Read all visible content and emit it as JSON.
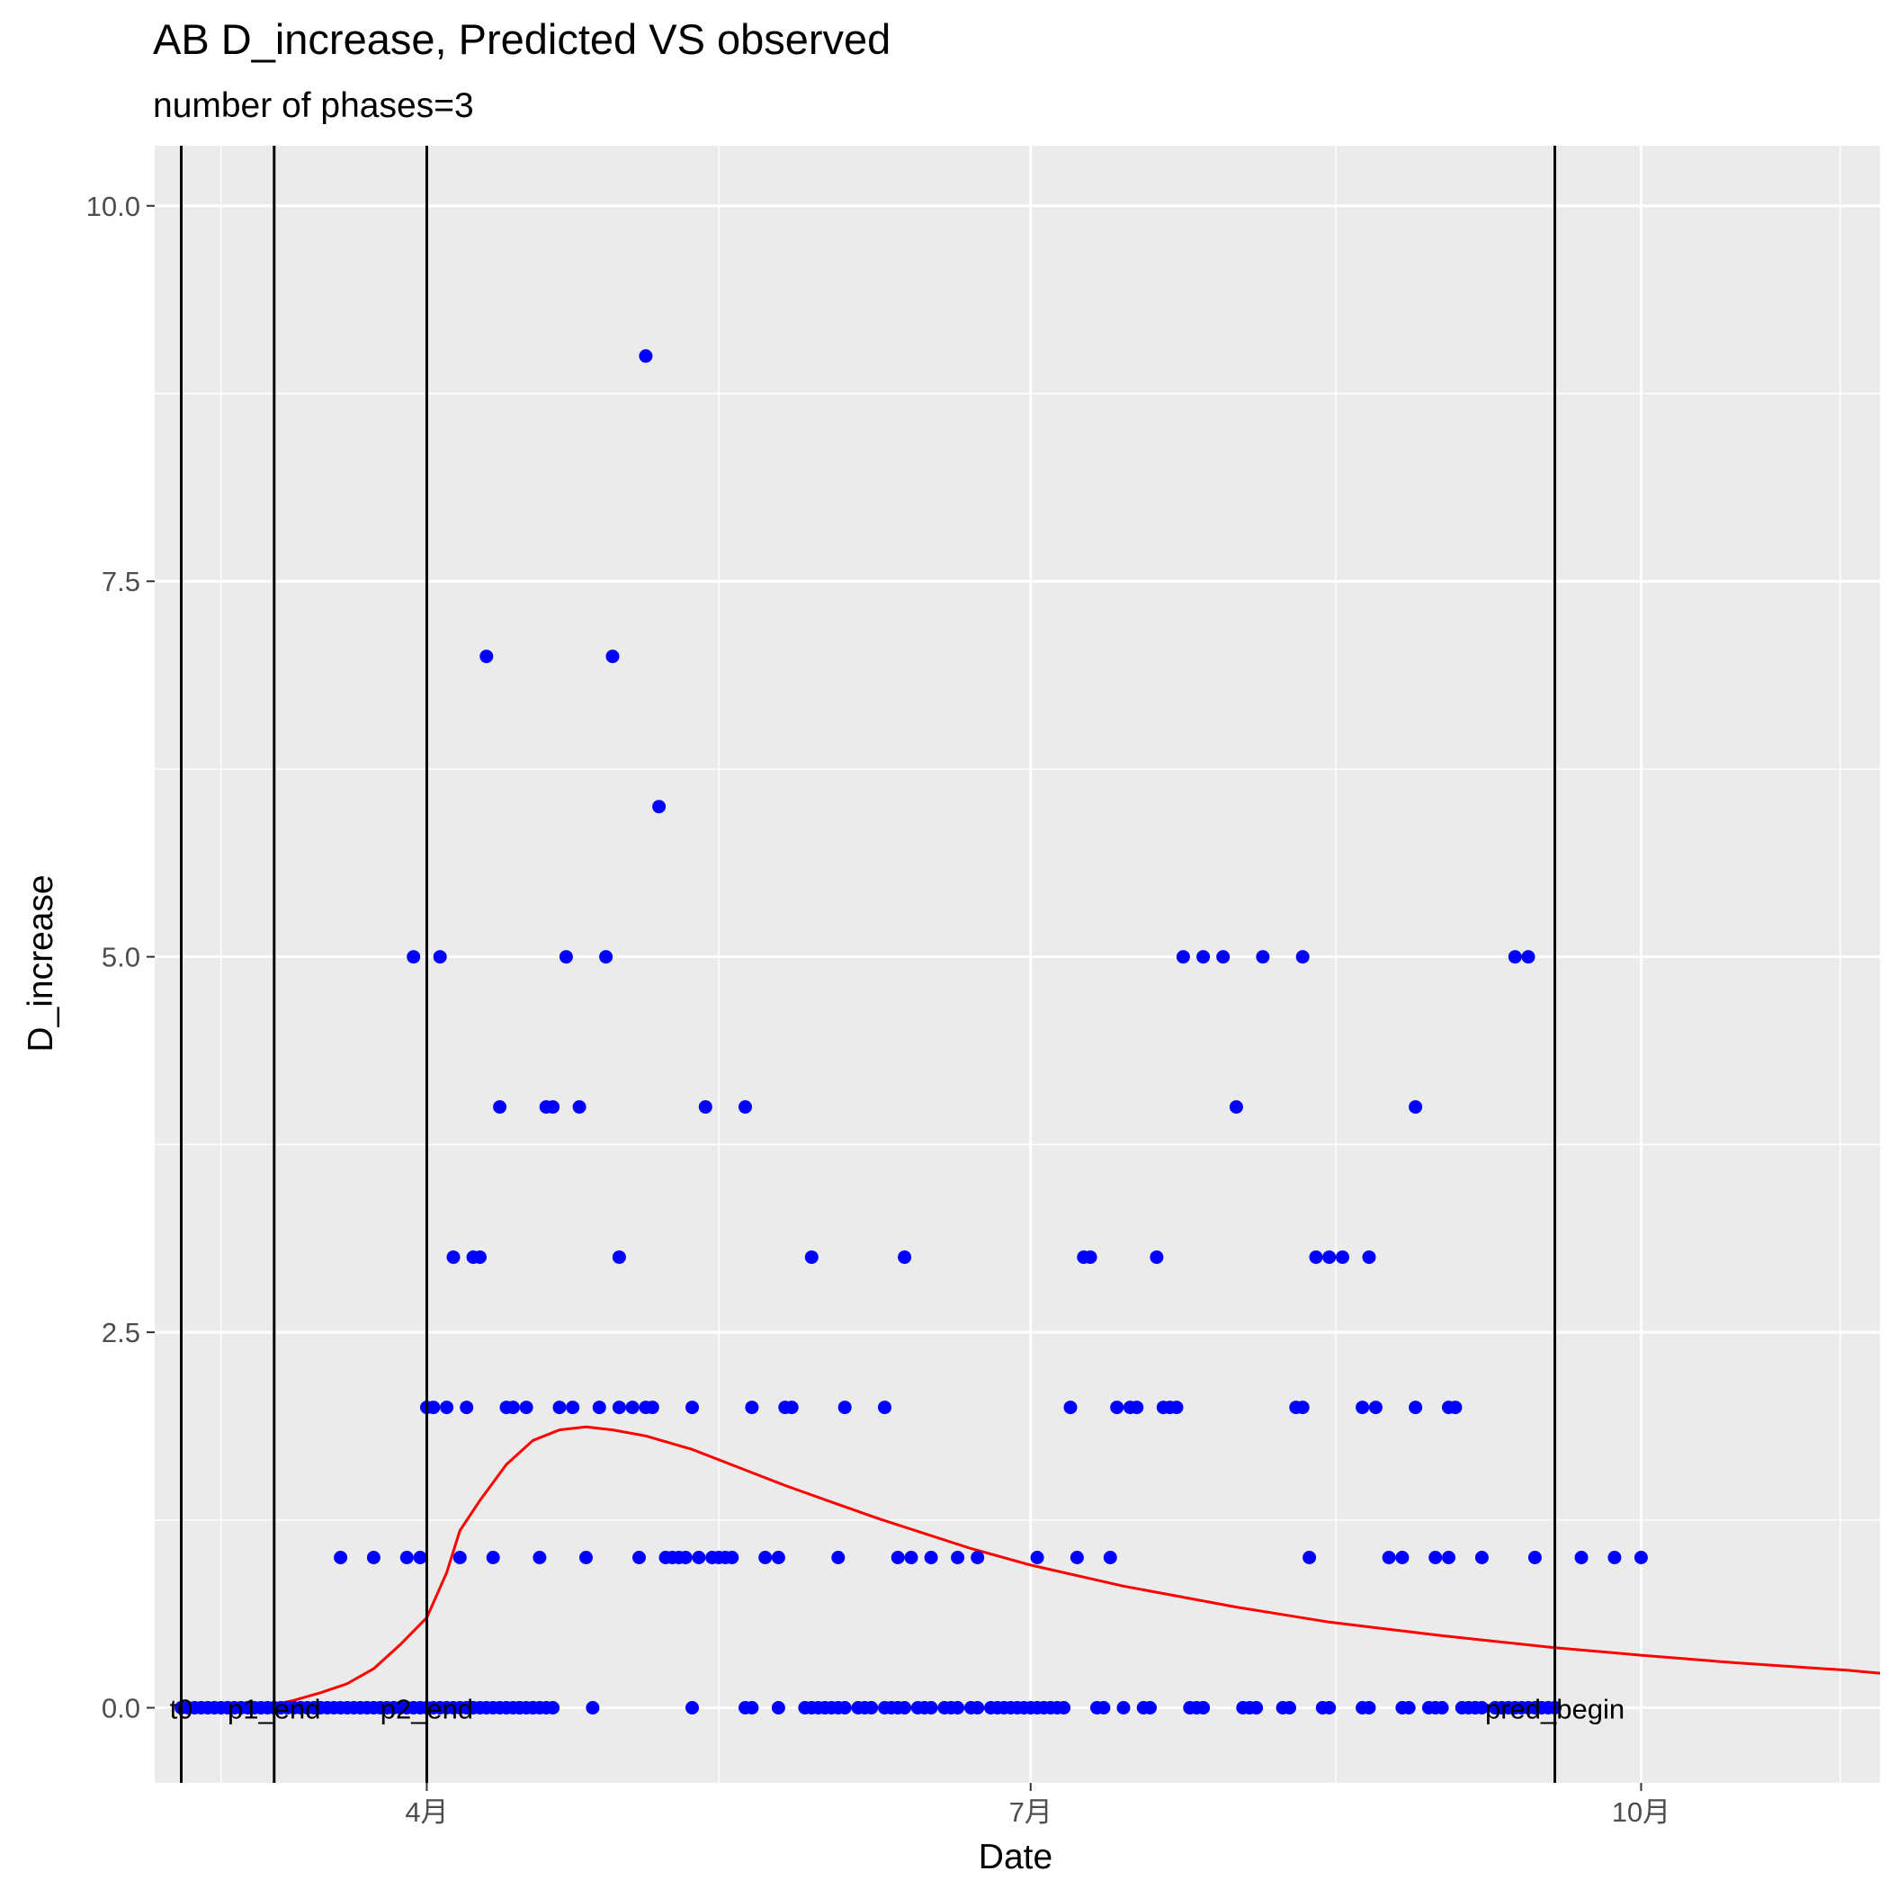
{
  "chart_data": {
    "type": "scatter",
    "title": "AB D_increase, Predicted VS observed",
    "subtitle": "number of phases=3",
    "xlabel": "Date",
    "ylabel": "D_increase",
    "xlim": [
      "2020-02-20",
      "2020-11-06"
    ],
    "ylim": [
      -0.5,
      10.4
    ],
    "grid": true,
    "y_ticks": [
      {
        "value": 0,
        "label": "0.0"
      },
      {
        "value": 2.5,
        "label": "2.5"
      },
      {
        "value": 5,
        "label": "5.0"
      },
      {
        "value": 7.5,
        "label": "7.5"
      },
      {
        "value": 10,
        "label": "10.0"
      }
    ],
    "x_ticks": [
      {
        "date": "2020-04-01",
        "label": "4月"
      },
      {
        "date": "2020-07-01",
        "label": "7月"
      },
      {
        "date": "2020-10-01",
        "label": "10月"
      }
    ],
    "x_minor": [
      "2020-03-01",
      "2020-05-15",
      "2020-08-16",
      "2020-10-31"
    ],
    "vlines": [
      {
        "date": "2020-02-24",
        "label": "t0"
      },
      {
        "date": "2020-03-09",
        "label": "p1_end"
      },
      {
        "date": "2020-04-01",
        "label": "p2_end"
      },
      {
        "date": "2020-09-18",
        "label": "pred_begin"
      }
    ],
    "series": [
      {
        "kind": "points",
        "color": "#0000ff",
        "points": [
          [
            "2020-02-24",
            0
          ],
          [
            "2020-02-25",
            0
          ],
          [
            "2020-02-26",
            0
          ],
          [
            "2020-02-27",
            0
          ],
          [
            "2020-02-28",
            0
          ],
          [
            "2020-02-29",
            0
          ],
          [
            "2020-03-01",
            0
          ],
          [
            "2020-03-02",
            0
          ],
          [
            "2020-03-03",
            0
          ],
          [
            "2020-03-04",
            0
          ],
          [
            "2020-03-05",
            0
          ],
          [
            "2020-03-06",
            0
          ],
          [
            "2020-03-07",
            0
          ],
          [
            "2020-03-08",
            0
          ],
          [
            "2020-03-09",
            0
          ],
          [
            "2020-03-10",
            0
          ],
          [
            "2020-03-11",
            0
          ],
          [
            "2020-03-12",
            0
          ],
          [
            "2020-03-13",
            0
          ],
          [
            "2020-03-14",
            0
          ],
          [
            "2020-03-15",
            0
          ],
          [
            "2020-03-16",
            0
          ],
          [
            "2020-03-17",
            0
          ],
          [
            "2020-03-18",
            0
          ],
          [
            "2020-03-19",
            0
          ],
          [
            "2020-03-20",
            0
          ],
          [
            "2020-03-21",
            0
          ],
          [
            "2020-03-22",
            0
          ],
          [
            "2020-03-23",
            0
          ],
          [
            "2020-03-24",
            0
          ],
          [
            "2020-03-25",
            0
          ],
          [
            "2020-03-26",
            0
          ],
          [
            "2020-03-27",
            0
          ],
          [
            "2020-03-28",
            0
          ],
          [
            "2020-03-29",
            0
          ],
          [
            "2020-03-30",
            0
          ],
          [
            "2020-03-31",
            0
          ],
          [
            "2020-04-01",
            0
          ],
          [
            "2020-04-02",
            0
          ],
          [
            "2020-04-03",
            0
          ],
          [
            "2020-04-04",
            0
          ],
          [
            "2020-04-05",
            0
          ],
          [
            "2020-04-06",
            0
          ],
          [
            "2020-04-07",
            0
          ],
          [
            "2020-04-08",
            0
          ],
          [
            "2020-04-09",
            0
          ],
          [
            "2020-04-10",
            0
          ],
          [
            "2020-04-11",
            0
          ],
          [
            "2020-04-12",
            0
          ],
          [
            "2020-04-13",
            0
          ],
          [
            "2020-04-14",
            0
          ],
          [
            "2020-04-15",
            0
          ],
          [
            "2020-04-16",
            0
          ],
          [
            "2020-04-17",
            0
          ],
          [
            "2020-04-18",
            0
          ],
          [
            "2020-04-19",
            0
          ],
          [
            "2020-04-20",
            0
          ],
          [
            "2020-03-19",
            1
          ],
          [
            "2020-03-24",
            1
          ],
          [
            "2020-03-29",
            1
          ],
          [
            "2020-03-31",
            1
          ],
          [
            "2020-04-06",
            1
          ],
          [
            "2020-04-11",
            1
          ],
          [
            "2020-04-18",
            1
          ],
          [
            "2020-04-25",
            1
          ],
          [
            "2020-05-03",
            1
          ],
          [
            "2020-05-07",
            1
          ],
          [
            "2020-05-08",
            1
          ],
          [
            "2020-05-09",
            1
          ],
          [
            "2020-05-10",
            1
          ],
          [
            "2020-05-12",
            1
          ],
          [
            "2020-05-14",
            1
          ],
          [
            "2020-05-15",
            1
          ],
          [
            "2020-05-16",
            1
          ],
          [
            "2020-05-17",
            1
          ],
          [
            "2020-05-22",
            1
          ],
          [
            "2020-05-24",
            1
          ],
          [
            "2020-06-02",
            1
          ],
          [
            "2020-06-11",
            1
          ],
          [
            "2020-06-13",
            1
          ],
          [
            "2020-06-16",
            1
          ],
          [
            "2020-06-20",
            1
          ],
          [
            "2020-06-23",
            1
          ],
          [
            "2020-07-02",
            1
          ],
          [
            "2020-07-08",
            1
          ],
          [
            "2020-07-13",
            1
          ],
          [
            "2020-08-12",
            1
          ],
          [
            "2020-08-24",
            1
          ],
          [
            "2020-08-26",
            1
          ],
          [
            "2020-08-31",
            1
          ],
          [
            "2020-09-02",
            1
          ],
          [
            "2020-09-07",
            1
          ],
          [
            "2020-09-15",
            1
          ],
          [
            "2020-09-22",
            1
          ],
          [
            "2020-09-27",
            1
          ],
          [
            "2020-10-01",
            1
          ],
          [
            "2020-04-01",
            2
          ],
          [
            "2020-04-02",
            2
          ],
          [
            "2020-04-04",
            2
          ],
          [
            "2020-04-07",
            2
          ],
          [
            "2020-04-13",
            2
          ],
          [
            "2020-04-14",
            2
          ],
          [
            "2020-04-16",
            2
          ],
          [
            "2020-04-21",
            2
          ],
          [
            "2020-04-23",
            2
          ],
          [
            "2020-04-27",
            2
          ],
          [
            "2020-04-30",
            2
          ],
          [
            "2020-05-02",
            2
          ],
          [
            "2020-05-04",
            2
          ],
          [
            "2020-05-05",
            2
          ],
          [
            "2020-05-11",
            2
          ],
          [
            "2020-05-20",
            2
          ],
          [
            "2020-05-25",
            2
          ],
          [
            "2020-05-26",
            2
          ],
          [
            "2020-06-03",
            2
          ],
          [
            "2020-06-09",
            2
          ],
          [
            "2020-07-07",
            2
          ],
          [
            "2020-07-14",
            2
          ],
          [
            "2020-07-16",
            2
          ],
          [
            "2020-07-17",
            2
          ],
          [
            "2020-07-21",
            2
          ],
          [
            "2020-07-22",
            2
          ],
          [
            "2020-07-23",
            2
          ],
          [
            "2020-08-10",
            2
          ],
          [
            "2020-08-11",
            2
          ],
          [
            "2020-08-20",
            2
          ],
          [
            "2020-08-22",
            2
          ],
          [
            "2020-08-28",
            2
          ],
          [
            "2020-09-02",
            2
          ],
          [
            "2020-09-03",
            2
          ],
          [
            "2020-04-05",
            3
          ],
          [
            "2020-04-08",
            3
          ],
          [
            "2020-04-09",
            3
          ],
          [
            "2020-04-30",
            3
          ],
          [
            "2020-05-29",
            3
          ],
          [
            "2020-06-12",
            3
          ],
          [
            "2020-07-09",
            3
          ],
          [
            "2020-07-10",
            3
          ],
          [
            "2020-07-20",
            3
          ],
          [
            "2020-08-13",
            3
          ],
          [
            "2020-08-15",
            3
          ],
          [
            "2020-08-17",
            3
          ],
          [
            "2020-08-21",
            3
          ],
          [
            "2020-04-12",
            4
          ],
          [
            "2020-04-19",
            4
          ],
          [
            "2020-04-20",
            4
          ],
          [
            "2020-04-24",
            4
          ],
          [
            "2020-05-13",
            4
          ],
          [
            "2020-05-19",
            4
          ],
          [
            "2020-08-01",
            4
          ],
          [
            "2020-08-28",
            4
          ],
          [
            "2020-03-30",
            5
          ],
          [
            "2020-04-03",
            5
          ],
          [
            "2020-04-22",
            5
          ],
          [
            "2020-04-28",
            5
          ],
          [
            "2020-07-24",
            5
          ],
          [
            "2020-07-27",
            5
          ],
          [
            "2020-07-30",
            5
          ],
          [
            "2020-08-05",
            5
          ],
          [
            "2020-08-11",
            5
          ],
          [
            "2020-09-12",
            5
          ],
          [
            "2020-09-14",
            5
          ],
          [
            "2020-05-06",
            6
          ],
          [
            "2020-04-10",
            7
          ],
          [
            "2020-04-29",
            7
          ],
          [
            "2020-05-04",
            9
          ],
          [
            "2020-04-15",
            0
          ],
          [
            "2020-04-17",
            0
          ],
          [
            "2020-04-26",
            0
          ],
          [
            "2020-05-11",
            0
          ],
          [
            "2020-05-19",
            0
          ],
          [
            "2020-05-20",
            0
          ],
          [
            "2020-05-24",
            0
          ],
          [
            "2020-05-28",
            0
          ],
          [
            "2020-05-29",
            0
          ],
          [
            "2020-05-30",
            0
          ],
          [
            "2020-05-31",
            0
          ],
          [
            "2020-06-01",
            0
          ],
          [
            "2020-06-02",
            0
          ],
          [
            "2020-06-03",
            0
          ],
          [
            "2020-06-05",
            0
          ],
          [
            "2020-06-06",
            0
          ],
          [
            "2020-06-07",
            0
          ],
          [
            "2020-06-09",
            0
          ],
          [
            "2020-06-10",
            0
          ],
          [
            "2020-06-11",
            0
          ],
          [
            "2020-06-12",
            0
          ],
          [
            "2020-06-14",
            0
          ],
          [
            "2020-06-15",
            0
          ],
          [
            "2020-06-16",
            0
          ],
          [
            "2020-06-18",
            0
          ],
          [
            "2020-06-19",
            0
          ],
          [
            "2020-06-20",
            0
          ],
          [
            "2020-06-22",
            0
          ],
          [
            "2020-06-23",
            0
          ],
          [
            "2020-06-25",
            0
          ],
          [
            "2020-06-26",
            0
          ],
          [
            "2020-06-27",
            0
          ],
          [
            "2020-06-28",
            0
          ],
          [
            "2020-06-29",
            0
          ],
          [
            "2020-06-30",
            0
          ],
          [
            "2020-07-01",
            0
          ],
          [
            "2020-07-02",
            0
          ],
          [
            "2020-07-03",
            0
          ],
          [
            "2020-07-04",
            0
          ],
          [
            "2020-07-05",
            0
          ],
          [
            "2020-07-06",
            0
          ],
          [
            "2020-07-11",
            0
          ],
          [
            "2020-07-12",
            0
          ],
          [
            "2020-07-15",
            0
          ],
          [
            "2020-07-18",
            0
          ],
          [
            "2020-07-19",
            0
          ],
          [
            "2020-07-25",
            0
          ],
          [
            "2020-07-26",
            0
          ],
          [
            "2020-07-27",
            0
          ],
          [
            "2020-08-02",
            0
          ],
          [
            "2020-08-03",
            0
          ],
          [
            "2020-08-04",
            0
          ],
          [
            "2020-08-08",
            0
          ],
          [
            "2020-08-09",
            0
          ],
          [
            "2020-08-14",
            0
          ],
          [
            "2020-08-15",
            0
          ],
          [
            "2020-08-20",
            0
          ],
          [
            "2020-08-21",
            0
          ],
          [
            "2020-08-26",
            0
          ],
          [
            "2020-08-27",
            0
          ],
          [
            "2020-08-30",
            0
          ],
          [
            "2020-08-31",
            0
          ],
          [
            "2020-09-01",
            0
          ],
          [
            "2020-09-04",
            0
          ],
          [
            "2020-09-05",
            0
          ],
          [
            "2020-09-06",
            0
          ],
          [
            "2020-09-07",
            0
          ],
          [
            "2020-09-09",
            0
          ],
          [
            "2020-09-10",
            0
          ],
          [
            "2020-09-11",
            0
          ],
          [
            "2020-09-12",
            0
          ],
          [
            "2020-09-13",
            0
          ],
          [
            "2020-09-14",
            0
          ],
          [
            "2020-09-15",
            0
          ],
          [
            "2020-09-16",
            0
          ],
          [
            "2020-09-17",
            0
          ],
          [
            "2020-09-18",
            0
          ]
        ]
      },
      {
        "kind": "line",
        "color": "#ff0000",
        "points": [
          [
            "2020-02-24",
            0.0
          ],
          [
            "2020-03-09",
            0.02
          ],
          [
            "2020-03-12",
            0.05
          ],
          [
            "2020-03-16",
            0.1
          ],
          [
            "2020-03-20",
            0.16
          ],
          [
            "2020-03-24",
            0.26
          ],
          [
            "2020-03-28",
            0.42
          ],
          [
            "2020-04-01",
            0.6
          ],
          [
            "2020-04-04",
            0.9
          ],
          [
            "2020-04-06",
            1.18
          ],
          [
            "2020-04-09",
            1.38
          ],
          [
            "2020-04-13",
            1.62
          ],
          [
            "2020-04-17",
            1.78
          ],
          [
            "2020-04-21",
            1.85
          ],
          [
            "2020-04-25",
            1.87
          ],
          [
            "2020-04-29",
            1.85
          ],
          [
            "2020-05-04",
            1.81
          ],
          [
            "2020-05-11",
            1.72
          ],
          [
            "2020-05-18",
            1.6
          ],
          [
            "2020-05-25",
            1.48
          ],
          [
            "2020-06-01",
            1.37
          ],
          [
            "2020-06-08",
            1.26
          ],
          [
            "2020-06-15",
            1.16
          ],
          [
            "2020-06-22",
            1.06
          ],
          [
            "2020-07-01",
            0.95
          ],
          [
            "2020-07-15",
            0.81
          ],
          [
            "2020-08-01",
            0.67
          ],
          [
            "2020-08-15",
            0.57
          ],
          [
            "2020-09-01",
            0.48
          ],
          [
            "2020-09-18",
            0.4
          ],
          [
            "2020-10-01",
            0.35
          ],
          [
            "2020-10-15",
            0.3
          ],
          [
            "2020-11-01",
            0.25
          ],
          [
            "2020-11-06",
            0.23
          ]
        ]
      }
    ]
  }
}
